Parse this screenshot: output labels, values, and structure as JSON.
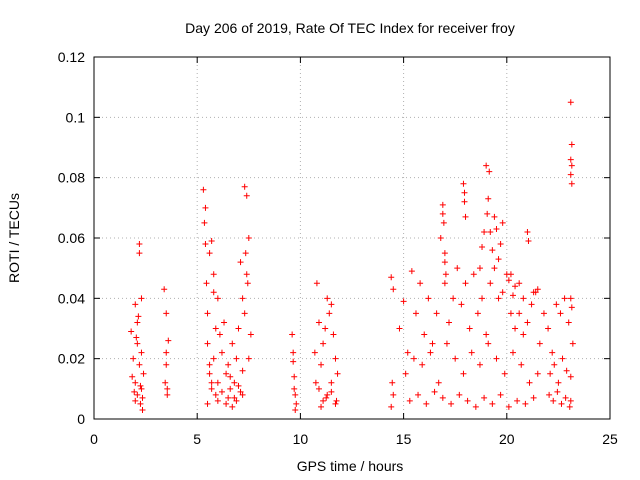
{
  "chart_data": {
    "type": "scatter",
    "title": "Day 206 of 2019, Rate Of TEC Index for receiver froy",
    "xlabel": "GPS time / hours",
    "ylabel": "ROTI / TECUs",
    "xlim": [
      0,
      25
    ],
    "ylim": [
      0,
      0.12
    ],
    "x_ticks": [
      0,
      5,
      10,
      15,
      20,
      25
    ],
    "x_tick_labels": [
      "0",
      "5",
      "10",
      "15",
      "20",
      "25"
    ],
    "y_ticks": [
      0,
      0.02,
      0.04,
      0.06,
      0.08,
      0.1,
      0.12
    ],
    "y_tick_labels": [
      "0",
      "0.02",
      "0.04",
      "0.06",
      "0.08",
      "0.1",
      "0.12"
    ],
    "grid": true,
    "marker": "+",
    "colors": {
      "marker": "#ff0000",
      "grid": "#b0b0b0",
      "axes": "#000000"
    },
    "series": [
      {
        "name": "ROTI",
        "x": [
          1.8,
          1.9,
          2.0,
          2.0,
          2.1,
          2.1,
          2.2,
          2.2,
          2.3,
          2.3,
          2.4,
          2.0,
          2.1,
          2.2,
          2.25,
          2.3,
          2.35,
          1.85,
          1.95,
          2.05,
          2.15,
          2.25,
          2.35,
          3.4,
          3.45,
          3.5,
          3.5,
          3.55,
          3.6,
          3.5,
          3.55,
          5.3,
          5.35,
          5.4,
          5.4,
          5.45,
          5.5,
          5.5,
          5.6,
          5.6,
          5.7,
          5.7,
          5.8,
          5.8,
          5.9,
          5.9,
          6.0,
          6.0,
          6.1,
          6.2,
          6.3,
          6.4,
          6.5,
          6.6,
          6.7,
          6.8,
          6.9,
          7.0,
          7.1,
          7.2,
          7.3,
          7.4,
          7.5,
          7.6,
          5.5,
          5.6,
          5.7,
          5.8,
          6.0,
          6.2,
          6.4,
          6.6,
          6.8,
          7.0,
          7.2,
          7.3,
          7.35,
          7.4,
          7.45,
          7.5,
          7.1,
          7.2,
          6.9,
          6.7,
          6.5,
          9.6,
          9.65,
          9.7,
          9.75,
          9.8,
          9.7,
          9.75,
          9.65,
          10.7,
          10.8,
          10.9,
          11.0,
          11.1,
          11.2,
          11.3,
          11.4,
          11.5,
          11.6,
          11.7,
          11.8,
          10.9,
          11.1,
          11.3,
          11.5,
          11.7,
          10.75,
          11.0,
          11.25,
          11.5,
          11.75,
          14.4,
          14.45,
          14.5,
          14.4,
          14.5,
          14.8,
          15.0,
          15.2,
          15.4,
          15.6,
          15.8,
          16.0,
          16.2,
          16.4,
          16.6,
          16.8,
          17.0,
          17.2,
          17.4,
          17.6,
          17.8,
          18.0,
          18.2,
          18.4,
          18.6,
          18.8,
          19.0,
          19.2,
          19.4,
          19.6,
          19.8,
          20.0,
          20.2,
          20.4,
          20.6,
          20.8,
          21.0,
          21.2,
          21.4,
          21.6,
          21.8,
          15.1,
          15.5,
          15.9,
          16.3,
          16.7,
          17.1,
          17.5,
          17.9,
          18.3,
          18.7,
          19.1,
          19.5,
          19.9,
          20.3,
          20.7,
          21.1,
          21.5,
          15.3,
          15.7,
          16.1,
          16.5,
          16.9,
          17.3,
          17.7,
          18.1,
          18.5,
          18.9,
          19.3,
          19.7,
          20.1,
          20.5,
          20.9,
          21.3,
          16.9,
          16.95,
          17.0,
          17.05,
          16.9,
          17.0,
          17.9,
          17.95,
          18.0,
          17.95,
          19.0,
          19.1,
          19.15,
          19.05,
          19.2,
          19.3,
          19.4,
          19.5,
          18.7,
          18.8,
          18.9,
          19.6,
          19.7,
          19.8,
          20.1,
          20.2,
          20.3,
          20.4,
          20.6,
          20.8,
          21.0,
          21.05,
          21.3,
          21.5,
          22.0,
          22.2,
          22.4,
          22.6,
          22.8,
          23.0,
          23.2,
          22.1,
          22.3,
          22.5,
          22.7,
          22.9,
          23.1,
          22.05,
          22.25,
          22.45,
          22.65,
          22.85,
          23.05,
          23.1,
          23.15,
          23.1,
          23.15,
          23.1,
          23.15,
          23.1,
          23.15,
          23.1
        ],
        "y": [
          0.029,
          0.02,
          0.012,
          0.038,
          0.008,
          0.025,
          0.055,
          0.018,
          0.01,
          0.04,
          0.015,
          0.006,
          0.032,
          0.058,
          0.005,
          0.022,
          0.003,
          0.014,
          0.009,
          0.027,
          0.034,
          0.011,
          0.007,
          0.043,
          0.012,
          0.022,
          0.035,
          0.008,
          0.026,
          0.018,
          0.01,
          0.076,
          0.065,
          0.07,
          0.058,
          0.045,
          0.035,
          0.025,
          0.055,
          0.015,
          0.059,
          0.01,
          0.048,
          0.02,
          0.03,
          0.008,
          0.04,
          0.012,
          0.028,
          0.022,
          0.032,
          0.015,
          0.018,
          0.01,
          0.025,
          0.012,
          0.02,
          0.03,
          0.052,
          0.04,
          0.035,
          0.074,
          0.06,
          0.028,
          0.005,
          0.018,
          0.012,
          0.042,
          0.006,
          0.009,
          0.005,
          0.014,
          0.007,
          0.011,
          0.016,
          0.077,
          0.055,
          0.048,
          0.045,
          0.02,
          0.009,
          0.008,
          0.006,
          0.004,
          0.007,
          0.028,
          0.019,
          0.014,
          0.008,
          0.005,
          0.01,
          0.003,
          0.022,
          0.022,
          0.045,
          0.032,
          0.018,
          0.025,
          0.03,
          0.04,
          0.035,
          0.038,
          0.028,
          0.02,
          0.015,
          0.01,
          0.006,
          0.008,
          0.012,
          0.005,
          0.012,
          0.004,
          0.007,
          0.009,
          0.006,
          0.047,
          0.012,
          0.008,
          0.004,
          0.043,
          0.03,
          0.039,
          0.022,
          0.049,
          0.035,
          0.045,
          0.028,
          0.04,
          0.025,
          0.035,
          0.06,
          0.045,
          0.032,
          0.04,
          0.05,
          0.038,
          0.045,
          0.03,
          0.048,
          0.035,
          0.04,
          0.028,
          0.045,
          0.05,
          0.04,
          0.042,
          0.048,
          0.035,
          0.03,
          0.045,
          0.028,
          0.032,
          0.038,
          0.042,
          0.025,
          0.035,
          0.015,
          0.02,
          0.018,
          0.022,
          0.012,
          0.025,
          0.02,
          0.015,
          0.022,
          0.018,
          0.025,
          0.02,
          0.015,
          0.022,
          0.018,
          0.012,
          0.015,
          0.006,
          0.008,
          0.005,
          0.009,
          0.007,
          0.005,
          0.008,
          0.006,
          0.004,
          0.007,
          0.005,
          0.008,
          0.004,
          0.006,
          0.005,
          0.007,
          0.071,
          0.065,
          0.055,
          0.048,
          0.068,
          0.052,
          0.078,
          0.072,
          0.067,
          0.075,
          0.084,
          0.073,
          0.082,
          0.068,
          0.062,
          0.056,
          0.067,
          0.063,
          0.05,
          0.057,
          0.062,
          0.053,
          0.058,
          0.065,
          0.046,
          0.048,
          0.041,
          0.044,
          0.035,
          0.04,
          0.062,
          0.059,
          0.042,
          0.043,
          0.03,
          0.022,
          0.038,
          0.035,
          0.04,
          0.032,
          0.025,
          0.015,
          0.018,
          0.012,
          0.02,
          0.016,
          0.014,
          0.008,
          0.006,
          0.009,
          0.005,
          0.007,
          0.004,
          0.105,
          0.091,
          0.086,
          0.084,
          0.081,
          0.078,
          0.04,
          0.037,
          0.006
        ]
      }
    ]
  }
}
